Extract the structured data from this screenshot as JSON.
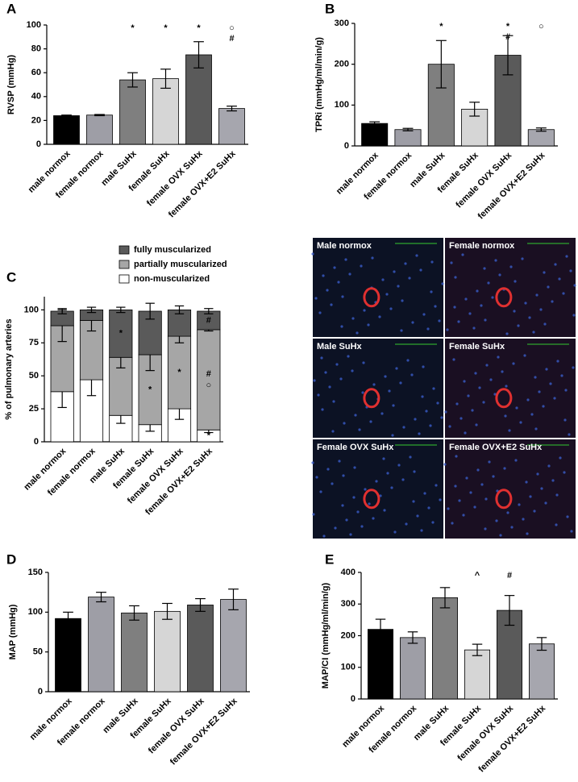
{
  "chart_data": [
    {
      "type": "bar",
      "panel": "A",
      "ylabel": "RVSP (mmHg)",
      "categories": [
        "male normox",
        "female normox",
        "male SuHx",
        "female SuHx",
        "female OVX SuHx",
        "female OVX+E2 SuHx"
      ],
      "values": [
        24,
        24.5,
        54,
        55,
        75,
        30
      ],
      "errors": [
        0.5,
        0.5,
        6,
        8,
        11,
        2
      ],
      "colors": [
        "#000000",
        "#9e9ea6",
        "#7f7f7f",
        "#d6d6d6",
        "#5a5a5a",
        "#a6a6ae"
      ],
      "markers": [
        null,
        null,
        [
          "*"
        ],
        [
          "*"
        ],
        [
          "*"
        ],
        [
          "○",
          "#"
        ]
      ],
      "ylim": [
        0,
        100
      ],
      "yticks": [
        0,
        20,
        40,
        60,
        80,
        100
      ]
    },
    {
      "type": "bar",
      "panel": "B",
      "ylabel": "TPRi (mmHg/ml/min/g)",
      "categories": [
        "male normox",
        "female normox",
        "male SuHx",
        "female SuHx",
        "female OVX SuHx",
        "female OVX+E2 SuHx"
      ],
      "values": [
        55,
        40,
        200,
        90,
        222,
        40
      ],
      "errors": [
        4,
        3,
        58,
        17,
        48,
        4
      ],
      "colors": [
        "#000000",
        "#9e9ea6",
        "#7f7f7f",
        "#d6d6d6",
        "#5a5a5a",
        "#a6a6ae"
      ],
      "markers": [
        null,
        null,
        [
          "*"
        ],
        null,
        [
          "*",
          "#"
        ],
        [
          "○"
        ]
      ],
      "ylim": [
        0,
        300
      ],
      "yticks": [
        0,
        100,
        200,
        300
      ]
    },
    {
      "type": "stacked_bar",
      "panel": "C",
      "ylabel": "% of pulmonary arteries",
      "categories": [
        "male normox",
        "female normox",
        "male SuHx",
        "female SuHx",
        "female OVX SuHx",
        "female OVX+E2 SuHx"
      ],
      "series": [
        {
          "name": "non-muscularized",
          "color": "#ffffff",
          "values": [
            38,
            47,
            20,
            13,
            25,
            9
          ],
          "errors": [
            12,
            12,
            6,
            5,
            8,
            2
          ],
          "markers": [
            null,
            null,
            null,
            null,
            null,
            [
              "*"
            ]
          ]
        },
        {
          "name": "partially muscularized",
          "color": "#a6a6a6",
          "values": [
            50,
            45,
            44,
            53,
            55,
            76
          ],
          "errors": [
            12,
            8,
            8,
            12,
            5,
            1
          ],
          "markers": [
            null,
            null,
            null,
            [
              "*"
            ],
            [
              "*"
            ],
            [
              "#",
              "○"
            ]
          ]
        },
        {
          "name": "fully muscularized",
          "color": "#5a5a5a",
          "values": [
            11,
            8,
            36,
            33,
            20,
            14
          ],
          "errors": [
            2,
            2,
            2,
            6,
            3,
            2
          ],
          "markers": [
            null,
            null,
            [
              "*"
            ],
            null,
            null,
            [
              "#"
            ]
          ]
        }
      ],
      "ylim": [
        0,
        110
      ],
      "yticks": [
        0,
        25,
        50,
        75,
        100
      ]
    },
    {
      "type": "bar",
      "panel": "D",
      "ylabel": "MAP (mmHg)",
      "categories": [
        "male normox",
        "female normox",
        "male SuHx",
        "female SuHx",
        "female OVX SuHx",
        "female OVX+E2 SuHx"
      ],
      "values": [
        92,
        119,
        99,
        101,
        109,
        116
      ],
      "errors": [
        8,
        6,
        9,
        10,
        8,
        13
      ],
      "colors": [
        "#000000",
        "#9e9ea6",
        "#7f7f7f",
        "#d6d6d6",
        "#5a5a5a",
        "#a6a6ae"
      ],
      "ylim": [
        0,
        150
      ],
      "yticks": [
        0,
        50,
        100,
        150
      ]
    },
    {
      "type": "bar",
      "panel": "E",
      "ylabel": "MAP/CI (mmHg/ml/min/g)",
      "categories": [
        "male normox",
        "female normox",
        "male SuHx",
        "female SuHx",
        "female OVX SuHx",
        "female OVX+E2 SuHx"
      ],
      "values": [
        220,
        194,
        320,
        155,
        280,
        174
      ],
      "errors": [
        32,
        18,
        32,
        18,
        47,
        20
      ],
      "colors": [
        "#000000",
        "#9e9ea6",
        "#7f7f7f",
        "#d6d6d6",
        "#5a5a5a",
        "#a6a6ae"
      ],
      "markers": [
        null,
        null,
        null,
        [
          "^"
        ],
        [
          "#"
        ],
        null
      ],
      "ylim": [
        0,
        400
      ],
      "yticks": [
        0,
        100,
        200,
        300,
        400
      ]
    }
  ],
  "micrographs": [
    "Male normox",
    "Female normox",
    "Male SuHx",
    "Female SuHx",
    "Female OVX SuHx",
    "Female OVX+E2 SuHx"
  ]
}
